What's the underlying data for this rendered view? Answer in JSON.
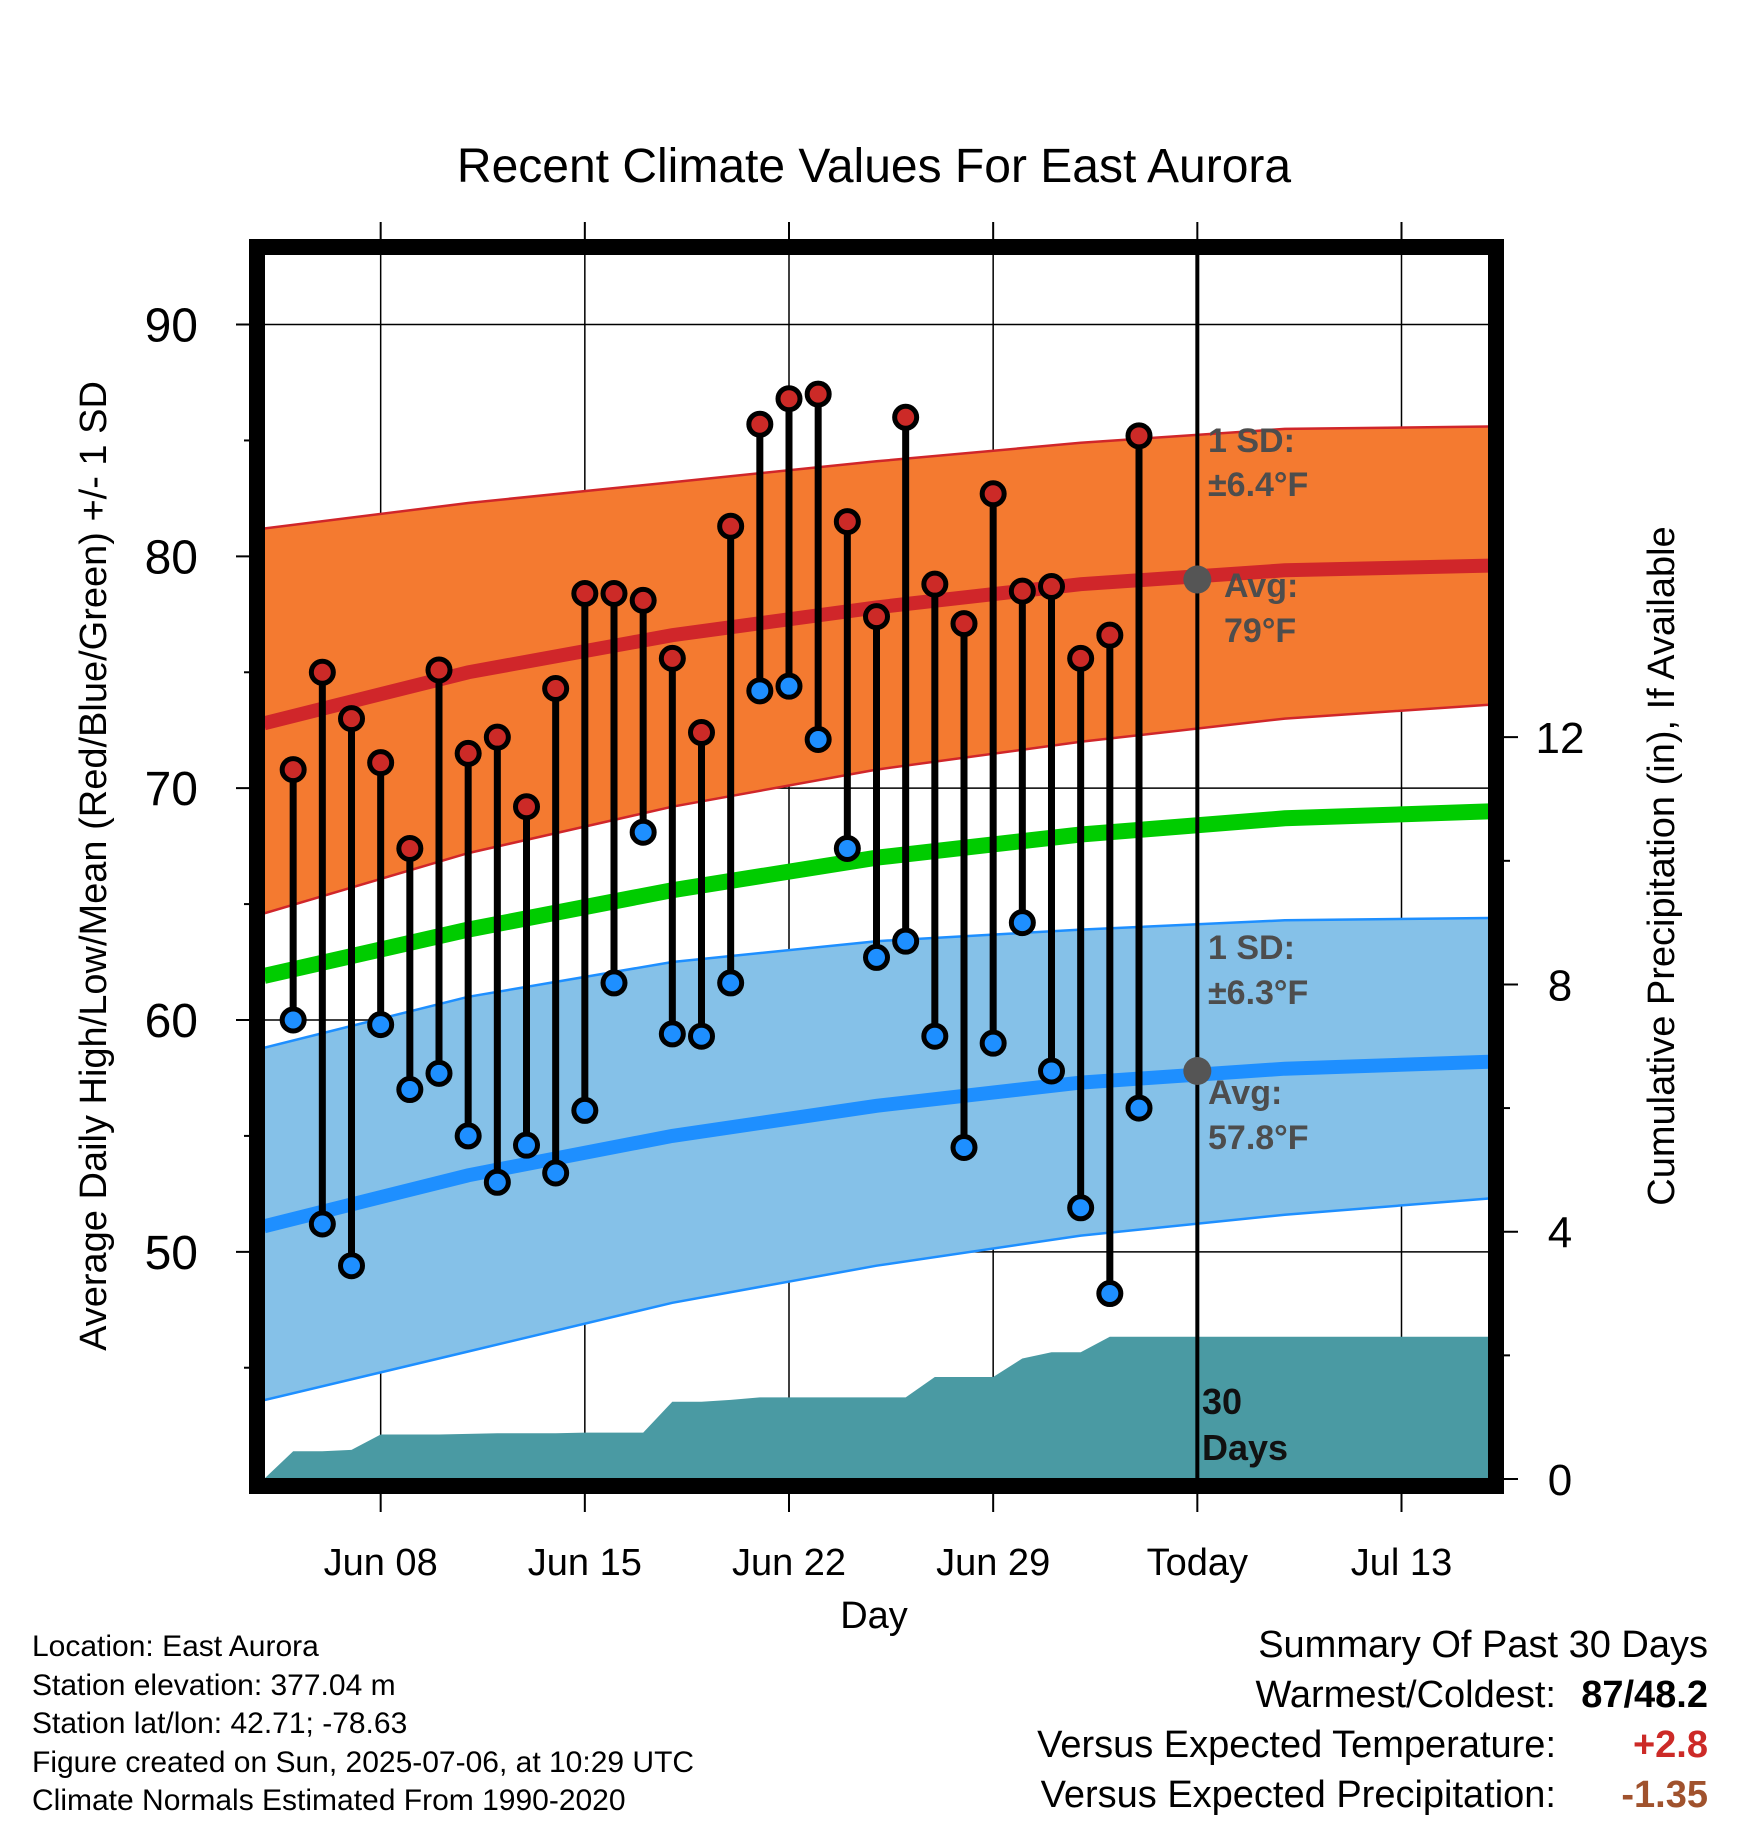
{
  "chart_data": {
    "type": "line",
    "title": "Recent Climate Values For East Aurora",
    "xlabel": "Day",
    "ylabel": "Average Daily High/Low/Mean (Red/Blue/Green) +/- 1 SD",
    "y2label": "Cumulative Precipitation (in), If Available",
    "xlim": [
      "2025-06-04",
      "2025-07-16"
    ],
    "ylim": [
      40.2,
      93.0
    ],
    "y2lim": [
      0,
      19.8
    ],
    "x_ticks": [
      {
        "date": "2025-06-08",
        "label": "Jun 08"
      },
      {
        "date": "2025-06-15",
        "label": "Jun 15"
      },
      {
        "date": "2025-06-22",
        "label": "Jun 22"
      },
      {
        "date": "2025-06-29",
        "label": "Jun 29"
      },
      {
        "date": "2025-07-06",
        "label": "Today"
      },
      {
        "date": "2025-07-13",
        "label": "Jul 13"
      }
    ],
    "y_ticks": [
      50,
      60,
      70,
      80,
      90
    ],
    "y2_ticks": [
      0,
      4,
      8,
      12
    ],
    "today": "2025-07-06",
    "grid": true,
    "daily": [
      {
        "date": "2025-06-05",
        "high": 70.8,
        "low": 60.0
      },
      {
        "date": "2025-06-06",
        "high": 75.0,
        "low": 51.2
      },
      {
        "date": "2025-06-07",
        "high": 73.0,
        "low": 49.4
      },
      {
        "date": "2025-06-08",
        "high": 71.1,
        "low": 59.8
      },
      {
        "date": "2025-06-09",
        "high": 67.4,
        "low": 57.0
      },
      {
        "date": "2025-06-10",
        "high": 75.1,
        "low": 57.7
      },
      {
        "date": "2025-06-11",
        "high": 71.5,
        "low": 55.0
      },
      {
        "date": "2025-06-12",
        "high": 72.2,
        "low": 53.0
      },
      {
        "date": "2025-06-13",
        "high": 69.2,
        "low": 54.6
      },
      {
        "date": "2025-06-14",
        "high": 74.3,
        "low": 53.4
      },
      {
        "date": "2025-06-15",
        "high": 78.4,
        "low": 56.1
      },
      {
        "date": "2025-06-16",
        "high": 78.4,
        "low": 61.6
      },
      {
        "date": "2025-06-17",
        "high": 78.1,
        "low": 68.1
      },
      {
        "date": "2025-06-18",
        "high": 75.6,
        "low": 59.4
      },
      {
        "date": "2025-06-19",
        "high": 72.4,
        "low": 59.3
      },
      {
        "date": "2025-06-20",
        "high": 81.3,
        "low": 61.6
      },
      {
        "date": "2025-06-21",
        "high": 85.7,
        "low": 74.2
      },
      {
        "date": "2025-06-22",
        "high": 86.8,
        "low": 74.4
      },
      {
        "date": "2025-06-23",
        "high": 87.0,
        "low": 72.1
      },
      {
        "date": "2025-06-24",
        "high": 81.5,
        "low": 67.4
      },
      {
        "date": "2025-06-25",
        "high": 77.4,
        "low": 62.7
      },
      {
        "date": "2025-06-26",
        "high": 86.0,
        "low": 63.4
      },
      {
        "date": "2025-06-27",
        "high": 78.8,
        "low": 59.3
      },
      {
        "date": "2025-06-28",
        "high": 77.1,
        "low": 54.5
      },
      {
        "date": "2025-06-29",
        "high": 82.7,
        "low": 59.0
      },
      {
        "date": "2025-06-30",
        "high": 78.5,
        "low": 64.2
      },
      {
        "date": "2025-07-01",
        "high": 78.7,
        "low": 57.8
      },
      {
        "date": "2025-07-02",
        "high": 75.6,
        "low": 51.9
      },
      {
        "date": "2025-07-03",
        "high": 76.6,
        "low": 48.2
      },
      {
        "date": "2025-07-04",
        "high": 85.2,
        "low": 56.2
      }
    ],
    "normal_high": {
      "dates": [
        "2025-06-04",
        "2025-06-11",
        "2025-06-18",
        "2025-06-25",
        "2025-07-02",
        "2025-07-09",
        "2025-07-16"
      ],
      "values": [
        72.8,
        75.0,
        76.6,
        77.8,
        78.8,
        79.4,
        79.6
      ]
    },
    "normal_high_band": {
      "upper": [
        81.2,
        82.3,
        83.2,
        84.1,
        84.9,
        85.5,
        85.6
      ],
      "lower": [
        64.6,
        67.2,
        69.2,
        70.8,
        72.0,
        73.0,
        73.6
      ]
    },
    "normal_mean": {
      "dates": [
        "2025-06-04",
        "2025-06-11",
        "2025-06-18",
        "2025-06-25",
        "2025-07-02",
        "2025-07-09",
        "2025-07-16"
      ],
      "values": [
        61.9,
        63.9,
        65.6,
        67.0,
        68.0,
        68.7,
        69.0
      ]
    },
    "normal_low": {
      "dates": [
        "2025-06-04",
        "2025-06-11",
        "2025-06-18",
        "2025-06-25",
        "2025-07-02",
        "2025-07-09",
        "2025-07-16"
      ],
      "values": [
        51.1,
        53.3,
        55.0,
        56.3,
        57.3,
        57.9,
        58.2
      ]
    },
    "normal_low_band": {
      "upper": [
        58.8,
        61.0,
        62.5,
        63.4,
        63.9,
        64.3,
        64.4
      ],
      "lower": [
        43.6,
        45.7,
        47.8,
        49.4,
        50.7,
        51.6,
        52.3
      ]
    },
    "precip_cumulative": {
      "dates": [
        "2025-06-04",
        "2025-06-05",
        "2025-06-06",
        "2025-06-07",
        "2025-06-08",
        "2025-06-09",
        "2025-06-10",
        "2025-06-11",
        "2025-06-12",
        "2025-06-13",
        "2025-06-14",
        "2025-06-15",
        "2025-06-16",
        "2025-06-17",
        "2025-06-18",
        "2025-06-19",
        "2025-06-20",
        "2025-06-21",
        "2025-06-22",
        "2025-06-23",
        "2025-06-24",
        "2025-06-25",
        "2025-06-26",
        "2025-06-27",
        "2025-06-28",
        "2025-06-29",
        "2025-06-30",
        "2025-07-01",
        "2025-07-02",
        "2025-07-03",
        "2025-07-04",
        "2025-07-05",
        "2025-07-06",
        "2025-07-16"
      ],
      "values": [
        0.0,
        0.45,
        0.45,
        0.47,
        0.72,
        0.72,
        0.72,
        0.73,
        0.74,
        0.74,
        0.74,
        0.75,
        0.75,
        0.75,
        1.25,
        1.25,
        1.28,
        1.32,
        1.32,
        1.32,
        1.32,
        1.32,
        1.32,
        1.65,
        1.65,
        1.65,
        1.95,
        2.05,
        2.05,
        2.3,
        2.3,
        2.3,
        2.3,
        2.3
      ]
    },
    "annotations": {
      "high_sd_label": "1 SD:",
      "high_sd_value": "±6.4°F",
      "high_avg_label": "Avg:",
      "high_avg_value": "79°F",
      "low_sd_label": "1 SD:",
      "low_sd_value": "±6.3°F",
      "low_avg_label": "Avg:",
      "low_avg_value": "57.8°F",
      "period_label_1": "30",
      "period_label_2": "Days"
    },
    "today_avg_high": 79,
    "today_avg_low": 57.8,
    "colors": {
      "high_band": "#f47a30",
      "high_line": "#d0262a",
      "mean_line": "#00cc00",
      "low_band": "#85c1e8",
      "low_line": "#1e8fff",
      "precip": "#4a9aa3",
      "high_dot": "#cc2a27",
      "low_dot": "#1e8fff",
      "avg_dot": "#555555"
    }
  },
  "footer": {
    "location": "Location: East Aurora",
    "elevation": "Station elevation: 377.04 m",
    "latlon": "Station lat/lon: 42.71; -78.63",
    "created": "Figure created on Sun, 2025-07-06, at 10:29 UTC",
    "normals": "Climate Normals Estimated From 1990-2020"
  },
  "summary": {
    "title": "Summary Of Past 30 Days",
    "warmest_label": "Warmest/Coldest:",
    "warmest_value": "87",
    "coldest_value": "48.2",
    "sep": "/",
    "temp_label": "Versus Expected Temperature:",
    "temp_value": "+2.8",
    "precip_label": "Versus Expected Precipitation:",
    "precip_value": "-1.35"
  }
}
